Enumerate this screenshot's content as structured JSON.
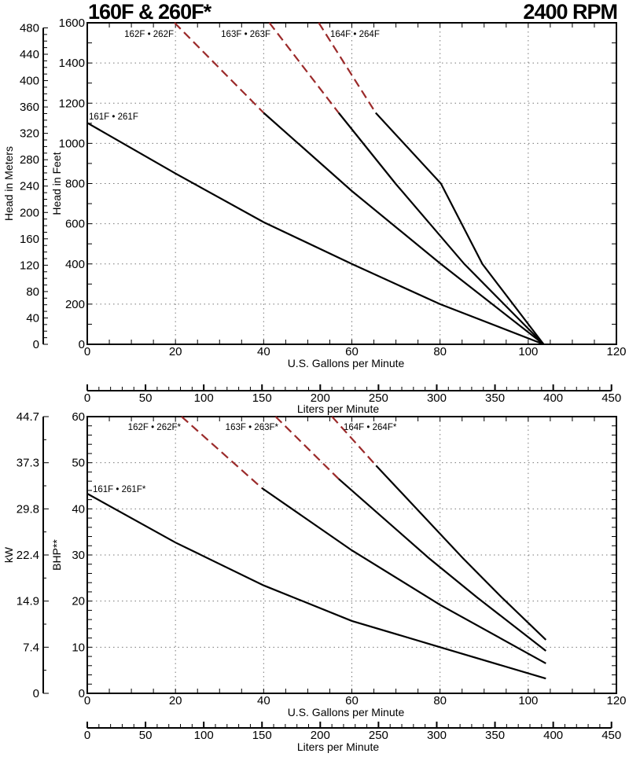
{
  "header": {
    "title": "160F & 260F*",
    "rpm": "2400 RPM"
  },
  "colors": {
    "solid": "#000000",
    "dashed": "#9b2a2a",
    "grid": "#777777"
  },
  "chart_data": [
    {
      "type": "line",
      "ylabel": "Head in Feet",
      "ylabel_secondary": "Head in Meters",
      "xlabel": "U.S. Gallons per Minute",
      "xlabel_secondary": "Liters per Minute",
      "xlim": [
        0,
        120
      ],
      "ylim": [
        0,
        1600
      ],
      "ylim_secondary": [
        0,
        487.7
      ],
      "xlim_secondary": [
        0,
        454.2
      ],
      "grid": true,
      "x_ticks": [
        "0",
        "20",
        "40",
        "60",
        "80",
        "100",
        "120"
      ],
      "y_ticks": [
        "0",
        "200",
        "400",
        "600",
        "800",
        "1000",
        "1200",
        "1400",
        "1600"
      ],
      "y2_ticks": [
        "0",
        "40",
        "80",
        "120",
        "160",
        "200",
        "240",
        "280",
        "320",
        "360",
        "400",
        "440",
        "480"
      ],
      "x2_ticks": [
        "0",
        "50",
        "100",
        "150",
        "200",
        "250",
        "300",
        "350",
        "400",
        "450"
      ],
      "series": [
        {
          "name": "161F • 261F",
          "dashed": [],
          "solid": [
            [
              0,
              1102
            ],
            [
              20,
              850
            ],
            [
              40,
              608
            ],
            [
              60,
              400
            ],
            [
              80,
              200
            ],
            [
              103.5,
              0
            ]
          ]
        },
        {
          "name": "162F • 262F",
          "dashed": [
            [
              19.8,
              1600
            ],
            [
              40,
              1152
            ]
          ],
          "solid": [
            [
              40,
              1152
            ],
            [
              60,
              763
            ],
            [
              80,
              403
            ],
            [
              103.5,
              0
            ]
          ]
        },
        {
          "name": "163F • 263F",
          "dashed": [
            [
              41.3,
              1600
            ],
            [
              57,
              1152
            ]
          ],
          "solid": [
            [
              57,
              1152
            ],
            [
              69.9,
              800
            ],
            [
              85.5,
              400
            ],
            [
              103.5,
              0
            ]
          ]
        },
        {
          "name": "164F • 264F",
          "dashed": [
            [
              52.5,
              1600
            ],
            [
              65.4,
              1152
            ]
          ],
          "solid": [
            [
              65.4,
              1152
            ],
            [
              80.2,
              800
            ],
            [
              89.6,
              400
            ],
            [
              103.5,
              0
            ]
          ]
        }
      ]
    },
    {
      "type": "line",
      "ylabel": "BHP**",
      "ylabel_secondary": "kW",
      "xlabel": "U.S. Gallons per Minute",
      "xlabel_secondary": "Liters per Minute",
      "xlim": [
        0,
        120
      ],
      "ylim": [
        0,
        60
      ],
      "ylim_secondary": [
        0,
        44.7
      ],
      "xlim_secondary": [
        0,
        454.2
      ],
      "grid": true,
      "x_ticks": [
        "0",
        "20",
        "40",
        "60",
        "80",
        "100",
        "120"
      ],
      "y_ticks": [
        "0",
        "10",
        "20",
        "30",
        "40",
        "50",
        "60"
      ],
      "y2_ticks": [
        "0",
        "7.4",
        "14.9",
        "22.4",
        "29.8",
        "37.3",
        "44.7"
      ],
      "x2_ticks": [
        "0",
        "50",
        "100",
        "150",
        "200",
        "250",
        "300",
        "350",
        "400",
        "450"
      ],
      "series": [
        {
          "name": "161F • 261F*",
          "dashed": [],
          "solid": [
            [
              0,
              43.3
            ],
            [
              20,
              32.7
            ],
            [
              40,
              23.4
            ],
            [
              60,
              15.7
            ],
            [
              80,
              10
            ],
            [
              104,
              3.2
            ]
          ]
        },
        {
          "name": "162F • 262F*",
          "dashed": [
            [
              21.4,
              60
            ],
            [
              39.6,
              44.5
            ]
          ],
          "solid": [
            [
              39.6,
              44.5
            ],
            [
              60,
              31
            ],
            [
              80,
              19.2
            ],
            [
              104,
              6.5
            ]
          ]
        },
        {
          "name": "163F • 263F*",
          "dashed": [
            [
              42.7,
              60
            ],
            [
              57,
              46.5
            ]
          ],
          "solid": [
            [
              57,
              46.5
            ],
            [
              77.5,
              29.3
            ],
            [
              88.4,
              20.8
            ],
            [
              104,
              9.2
            ]
          ]
        },
        {
          "name": "164F • 264F*",
          "dashed": [
            [
              55.5,
              60
            ],
            [
              65.5,
              49.4
            ]
          ],
          "solid": [
            [
              65.5,
              49.4
            ],
            [
              85.2,
              29.3
            ],
            [
              94,
              20.8
            ],
            [
              104,
              11.6
            ]
          ]
        }
      ]
    }
  ]
}
